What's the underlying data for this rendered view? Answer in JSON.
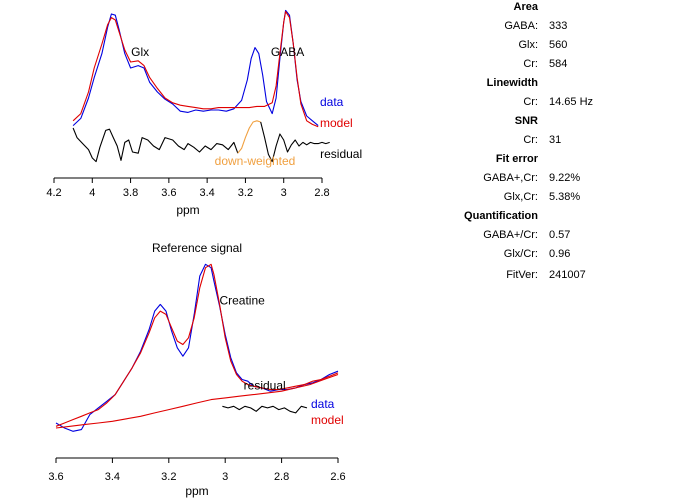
{
  "chart_data": [
    {
      "type": "line",
      "panel": "gaba",
      "title": "",
      "xlabel": "ppm",
      "xlim": [
        4.2,
        2.8
      ],
      "x_reversed": true,
      "xticks": [
        4.2,
        4,
        3.8,
        3.6,
        3.4,
        3.2,
        3,
        2.8
      ],
      "xtick_labels": [
        "4.2",
        "4",
        "3.8",
        "3.6",
        "3.4",
        "3.2",
        "3",
        "2.8"
      ],
      "ylim": [
        -0.35,
        1.05
      ],
      "legend": {
        "placement": "right",
        "entries": [
          "data",
          "model"
        ]
      },
      "annotations": [
        {
          "text": "Glx",
          "ppm": 3.75,
          "y": 0.6
        },
        {
          "text": "GABA",
          "ppm": 2.98,
          "y": 0.6
        },
        {
          "text": "residual",
          "ppm": 2.7,
          "y": -0.25
        },
        {
          "text": "down-weighted",
          "ppm": 3.15,
          "y": -0.31,
          "color": "#f0a040"
        }
      ],
      "series": [
        {
          "name": "data",
          "color": "#0000e0",
          "x": [
            4.1,
            4.06,
            4.02,
            3.99,
            3.95,
            3.92,
            3.9,
            3.88,
            3.86,
            3.83,
            3.8,
            3.76,
            3.73,
            3.7,
            3.66,
            3.62,
            3.58,
            3.54,
            3.5,
            3.46,
            3.42,
            3.38,
            3.34,
            3.3,
            3.26,
            3.22,
            3.19,
            3.17,
            3.15,
            3.13,
            3.11,
            3.09,
            3.06,
            3.04,
            3.02,
            3.0,
            2.99,
            2.97,
            2.95,
            2.93,
            2.91,
            2.88,
            2.85,
            2.82
          ],
          "y": [
            0.02,
            0.08,
            0.25,
            0.42,
            0.62,
            0.84,
            0.95,
            0.94,
            0.82,
            0.62,
            0.5,
            0.52,
            0.5,
            0.38,
            0.3,
            0.24,
            0.2,
            0.14,
            0.13,
            0.15,
            0.14,
            0.15,
            0.15,
            0.14,
            0.16,
            0.23,
            0.4,
            0.58,
            0.67,
            0.62,
            0.44,
            0.22,
            0.12,
            0.25,
            0.58,
            0.88,
            0.98,
            0.94,
            0.7,
            0.4,
            0.22,
            0.1,
            0.06,
            0.02
          ]
        },
        {
          "name": "model",
          "color": "#e00000",
          "x": [
            4.1,
            4.06,
            4.02,
            3.99,
            3.95,
            3.92,
            3.9,
            3.88,
            3.86,
            3.83,
            3.8,
            3.76,
            3.73,
            3.7,
            3.66,
            3.62,
            3.58,
            3.54,
            3.5,
            3.46,
            3.42,
            3.38,
            3.34,
            3.3,
            3.26,
            3.22,
            3.18,
            3.14,
            3.1,
            3.06,
            3.04,
            3.02,
            3.0,
            2.99,
            2.97,
            2.95,
            2.93,
            2.91,
            2.88,
            2.85,
            2.82
          ],
          "y": [
            0.06,
            0.12,
            0.3,
            0.5,
            0.7,
            0.86,
            0.92,
            0.9,
            0.8,
            0.65,
            0.55,
            0.56,
            0.52,
            0.42,
            0.33,
            0.25,
            0.21,
            0.19,
            0.18,
            0.17,
            0.16,
            0.16,
            0.17,
            0.17,
            0.17,
            0.17,
            0.17,
            0.18,
            0.18,
            0.21,
            0.35,
            0.62,
            0.88,
            0.97,
            0.92,
            0.7,
            0.42,
            0.2,
            0.06,
            0.03,
            0.01
          ]
        },
        {
          "name": "residual",
          "color": "#000000",
          "x": [
            4.1,
            4.08,
            4.05,
            4.02,
            4.0,
            3.98,
            3.96,
            3.93,
            3.91,
            3.89,
            3.87,
            3.85,
            3.83,
            3.81,
            3.79,
            3.76,
            3.74,
            3.71,
            3.68,
            3.65,
            3.62,
            3.58,
            3.55,
            3.52,
            3.5,
            3.47,
            3.44,
            3.41,
            3.38,
            3.35,
            3.32,
            3.29,
            3.26,
            3.24
          ],
          "y": [
            0.0,
            -0.08,
            -0.13,
            -0.18,
            -0.25,
            -0.28,
            -0.16,
            -0.02,
            -0.01,
            -0.08,
            -0.15,
            -0.27,
            -0.12,
            -0.1,
            -0.2,
            -0.21,
            -0.08,
            -0.1,
            -0.15,
            -0.18,
            -0.08,
            -0.1,
            -0.15,
            -0.18,
            -0.13,
            -0.16,
            -0.2,
            -0.15,
            -0.18,
            -0.13,
            -0.14,
            -0.18,
            -0.12,
            -0.21
          ]
        },
        {
          "name": "residual",
          "color": "#f0a040",
          "x": [
            3.24,
            3.22,
            3.2,
            3.18,
            3.16,
            3.14,
            3.12
          ],
          "y": [
            -0.21,
            -0.17,
            -0.08,
            0.0,
            0.05,
            0.06,
            0.05
          ]
        },
        {
          "name": "residual",
          "color": "#000000",
          "x": [
            3.12,
            3.1,
            3.08,
            3.06,
            3.04,
            3.02,
            3.0,
            2.98,
            2.96,
            2.94,
            2.92,
            2.9,
            2.88,
            2.86,
            2.84,
            2.82,
            2.8,
            2.78,
            2.76
          ],
          "y": [
            0.05,
            -0.08,
            -0.22,
            -0.28,
            -0.15,
            -0.05,
            -0.1,
            -0.2,
            -0.14,
            -0.1,
            -0.15,
            -0.12,
            -0.14,
            -0.12,
            -0.13,
            -0.13,
            -0.12,
            -0.13,
            -0.12
          ]
        }
      ]
    },
    {
      "type": "line",
      "panel": "reference",
      "title": "Reference signal",
      "xlabel": "ppm",
      "xlim": [
        3.6,
        2.6
      ],
      "x_reversed": true,
      "xticks": [
        3.6,
        3.4,
        3.2,
        3,
        2.8,
        2.6
      ],
      "xtick_labels": [
        "3.6",
        "3.4",
        "3.2",
        "3",
        "2.8",
        "2.6"
      ],
      "ylim": [
        -0.1,
        1.05
      ],
      "legend": {
        "placement": "bottom-right",
        "entries": [
          "data",
          "model"
        ]
      },
      "annotations": [
        {
          "text": "Creatine",
          "ppm": 2.94,
          "y": 0.76
        },
        {
          "text": "residual",
          "ppm": 2.86,
          "y": 0.25
        }
      ],
      "series": [
        {
          "name": "data",
          "color": "#0000e0",
          "x": [
            3.6,
            3.57,
            3.54,
            3.51,
            3.48,
            3.45,
            3.42,
            3.39,
            3.36,
            3.33,
            3.3,
            3.27,
            3.25,
            3.23,
            3.21,
            3.19,
            3.17,
            3.15,
            3.13,
            3.11,
            3.09,
            3.07,
            3.05,
            3.04,
            3.02,
            3.0,
            2.98,
            2.96,
            2.94,
            2.92,
            2.9,
            2.87,
            2.84,
            2.81,
            2.78,
            2.75,
            2.72,
            2.69,
            2.66,
            2.63,
            2.6
          ],
          "y": [
            0.05,
            0.02,
            0.0,
            0.01,
            0.1,
            0.14,
            0.18,
            0.22,
            0.3,
            0.38,
            0.48,
            0.61,
            0.72,
            0.76,
            0.72,
            0.6,
            0.5,
            0.45,
            0.5,
            0.7,
            0.93,
            1.0,
            0.98,
            0.9,
            0.75,
            0.58,
            0.44,
            0.35,
            0.31,
            0.3,
            0.27,
            0.26,
            0.24,
            0.25,
            0.25,
            0.26,
            0.28,
            0.29,
            0.31,
            0.34,
            0.36
          ]
        },
        {
          "name": "model",
          "color": "#e00000",
          "x": [
            3.6,
            3.57,
            3.54,
            3.51,
            3.48,
            3.45,
            3.42,
            3.39,
            3.36,
            3.33,
            3.3,
            3.27,
            3.25,
            3.23,
            3.21,
            3.19,
            3.17,
            3.15,
            3.13,
            3.11,
            3.09,
            3.07,
            3.05,
            3.04,
            3.02,
            3.0,
            2.98,
            2.96,
            2.94,
            2.92,
            2.9,
            2.87,
            2.84,
            2.81,
            2.78,
            2.75,
            2.72,
            2.69,
            2.66,
            2.63,
            2.6
          ],
          "y": [
            0.03,
            0.05,
            0.07,
            0.09,
            0.11,
            0.13,
            0.17,
            0.22,
            0.3,
            0.38,
            0.47,
            0.59,
            0.68,
            0.72,
            0.7,
            0.62,
            0.54,
            0.52,
            0.56,
            0.68,
            0.86,
            0.98,
            1.0,
            0.94,
            0.76,
            0.56,
            0.42,
            0.34,
            0.3,
            0.28,
            0.27,
            0.26,
            0.25,
            0.25,
            0.26,
            0.27,
            0.28,
            0.3,
            0.31,
            0.33,
            0.35
          ]
        },
        {
          "name": "model",
          "color": "#e00000",
          "x": [
            3.6,
            3.55,
            3.5,
            3.45,
            3.4,
            3.35,
            3.3,
            3.25,
            3.2,
            3.15,
            3.1,
            3.05,
            3.0,
            2.95,
            2.9,
            2.85,
            2.8,
            2.75,
            2.7,
            2.65,
            2.6
          ],
          "y": [
            0.02,
            0.03,
            0.04,
            0.05,
            0.06,
            0.075,
            0.09,
            0.11,
            0.13,
            0.15,
            0.17,
            0.19,
            0.2,
            0.21,
            0.22,
            0.23,
            0.24,
            0.26,
            0.28,
            0.31,
            0.34
          ]
        },
        {
          "name": "residual",
          "color": "#000000",
          "x": [
            3.01,
            2.99,
            2.97,
            2.95,
            2.93,
            2.91,
            2.89,
            2.87,
            2.85,
            2.83,
            2.81,
            2.79,
            2.77,
            2.75,
            2.73,
            2.71
          ],
          "y": [
            0.15,
            0.14,
            0.15,
            0.13,
            0.15,
            0.14,
            0.12,
            0.15,
            0.14,
            0.15,
            0.13,
            0.14,
            0.12,
            0.11,
            0.15,
            0.14
          ]
        }
      ]
    }
  ],
  "stats": {
    "sections": [
      {
        "header": "Area",
        "rows": [
          {
            "label": "GABA:",
            "value": "333"
          },
          {
            "label": "Glx:",
            "value": "560"
          },
          {
            "label": "Cr:",
            "value": "584"
          }
        ]
      },
      {
        "header": "Linewidth",
        "rows": [
          {
            "label": "Cr:",
            "value": "14.65 Hz"
          }
        ]
      },
      {
        "header": "SNR",
        "rows": [
          {
            "label": "Cr:",
            "value": "31"
          }
        ]
      },
      {
        "header": "Fit error",
        "rows": [
          {
            "label": "GABA+,Cr:",
            "value": "9.22%"
          },
          {
            "label": "Glx,Cr:",
            "value": "5.38%"
          }
        ]
      },
      {
        "header": "Quantification",
        "rows": [
          {
            "label": "GABA+/Cr:",
            "value": "0.57"
          },
          {
            "label": "Glx/Cr:",
            "value": "0.96"
          }
        ]
      }
    ],
    "fitver": {
      "label": "FitVer:",
      "value": "241007"
    }
  }
}
